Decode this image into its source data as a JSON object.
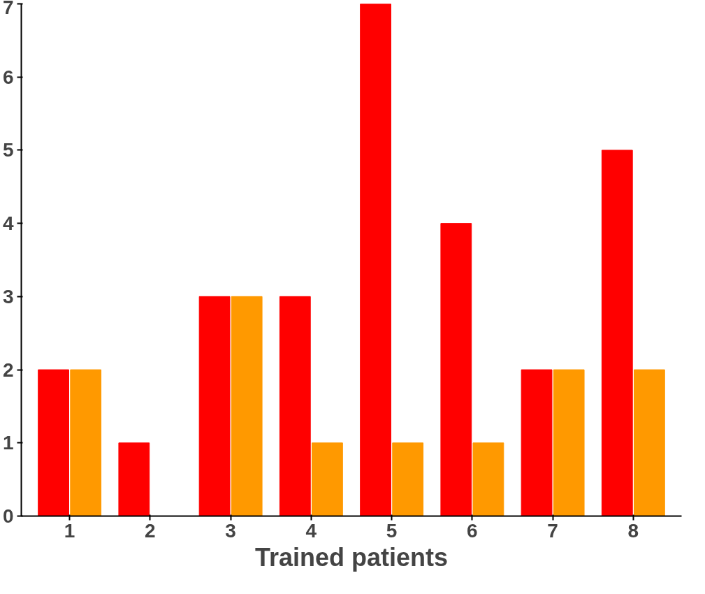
{
  "chart_data": {
    "type": "bar",
    "xlabel": "Trained patients",
    "categories": [
      "1",
      "2",
      "3",
      "4",
      "5",
      "6",
      "7",
      "8"
    ],
    "series": [
      {
        "color": "#ff0000",
        "values": [
          2,
          1,
          3,
          3,
          7,
          4,
          2,
          5
        ]
      },
      {
        "color": "#ff9900",
        "values": [
          2,
          0,
          3,
          1,
          1,
          1,
          2,
          2
        ]
      }
    ],
    "ylim": [
      0,
      7
    ],
    "yticks": [
      0,
      1,
      2,
      3,
      4,
      5,
      6,
      7
    ],
    "grid": false
  }
}
